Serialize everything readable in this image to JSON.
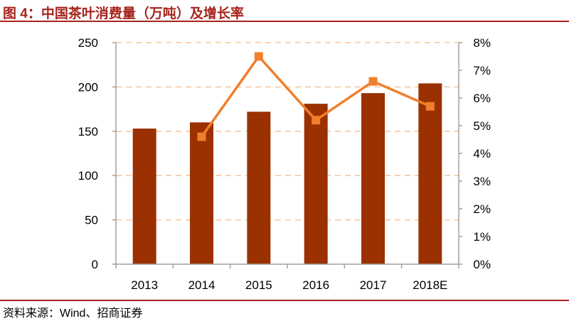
{
  "header": {
    "title": "图 4：中国茶叶消费量（万吨）及增长率"
  },
  "footer": {
    "source": "资料来源：Wind、招商证券"
  },
  "colors": {
    "accent": "#a6231b",
    "bar": "#9b3000",
    "line": "#f07f2c",
    "grid": "#f5c8a0",
    "axis": "#a0a0a0"
  },
  "chart_data": {
    "type": "bar",
    "categories": [
      "2013",
      "2014",
      "2015",
      "2016",
      "2017",
      "2018E"
    ],
    "series": [
      {
        "type": "bar",
        "axis": "left",
        "values": [
          153,
          160,
          172,
          181,
          193,
          204
        ]
      },
      {
        "type": "line",
        "axis": "right",
        "values": [
          null,
          4.6,
          7.5,
          5.2,
          6.6,
          5.7
        ]
      }
    ],
    "y_left": {
      "min": 0,
      "max": 250,
      "ticks": [
        "0",
        "50",
        "100",
        "150",
        "200",
        "250"
      ]
    },
    "y_right": {
      "min": 0,
      "max": 8,
      "ticks": [
        "0%",
        "1%",
        "2%",
        "3%",
        "4%",
        "5%",
        "6%",
        "7%",
        "8%"
      ]
    },
    "grid": true,
    "legend": "none"
  }
}
